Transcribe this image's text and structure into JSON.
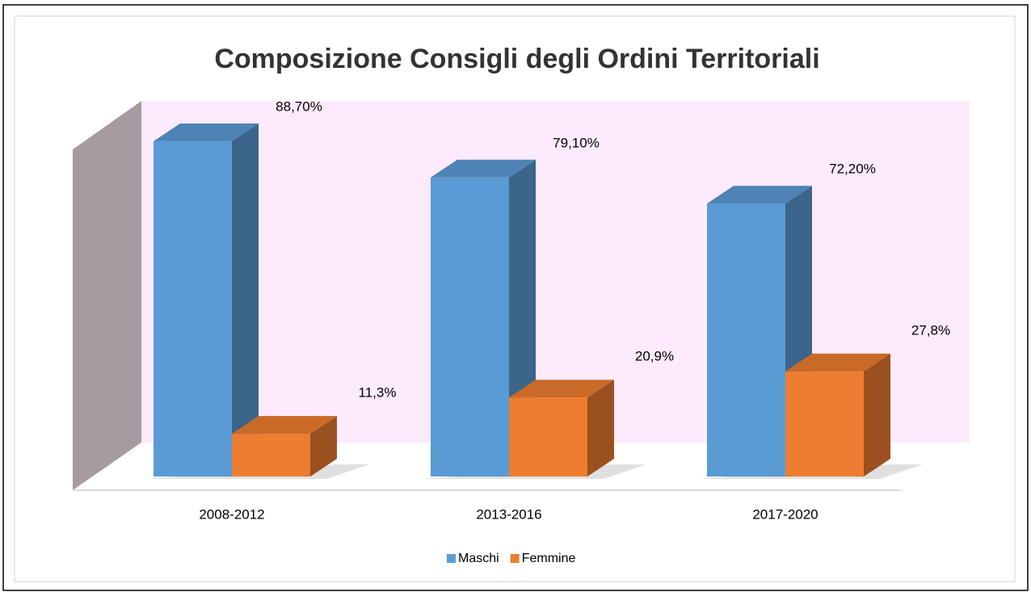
{
  "chart_data": {
    "type": "bar3d",
    "title": "Composizione Consigli degli Ordini Territoriali",
    "categories": [
      "2008-2012",
      "2013-2016",
      "2017-2020"
    ],
    "series": [
      {
        "name": "Maschi",
        "color": "#5b9bd5",
        "values": [
          88.7,
          79.1,
          72.2
        ],
        "value_labels": [
          "88,70%",
          "79,10%",
          "72,20%"
        ]
      },
      {
        "name": "Femmine",
        "color": "#ed7d31",
        "values": [
          11.3,
          20.9,
          27.8
        ],
        "value_labels": [
          "11,3%",
          "20,9%",
          "27,8%"
        ]
      }
    ],
    "ylim": [
      0,
      100
    ],
    "legend": "bottom"
  }
}
